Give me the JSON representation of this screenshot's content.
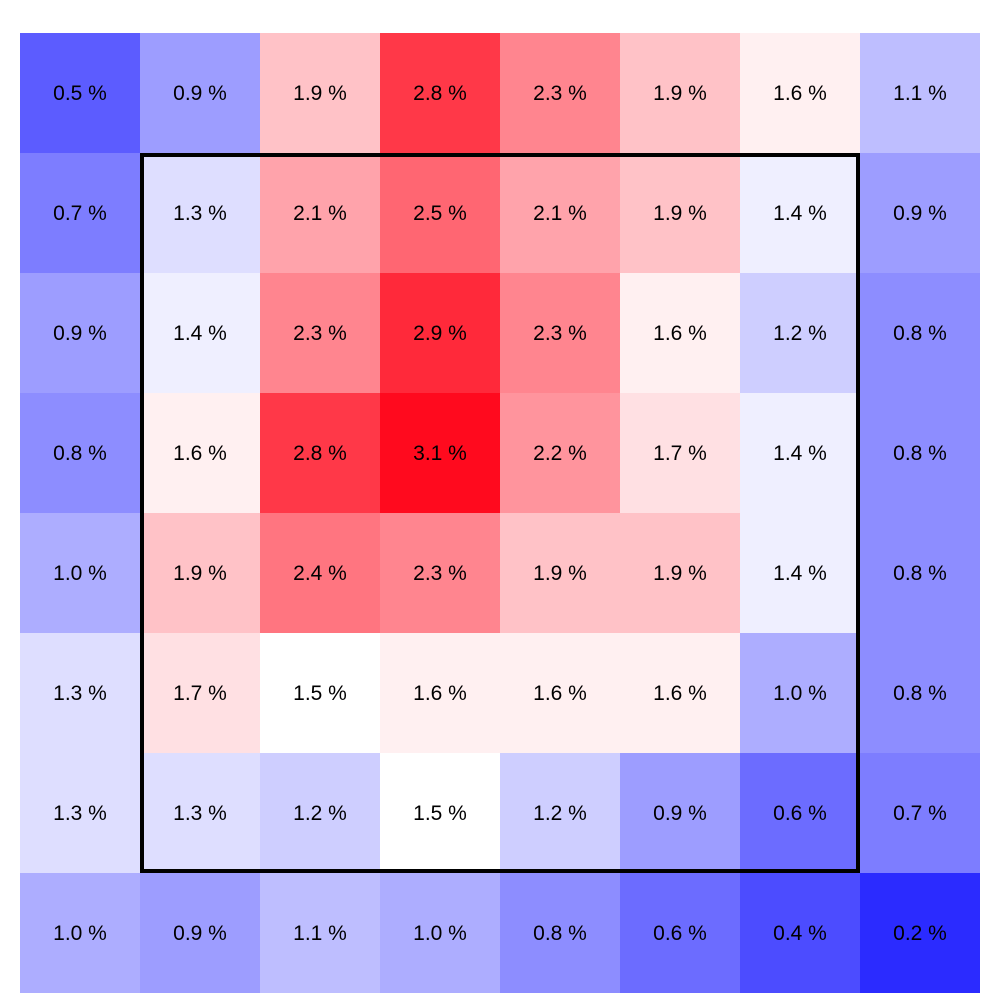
{
  "chart_data": {
    "type": "heatmap",
    "unit_suffix": " %",
    "rows": [
      [
        0.5,
        0.9,
        1.9,
        2.8,
        2.3,
        1.9,
        1.6,
        1.1
      ],
      [
        0.7,
        1.3,
        2.1,
        2.5,
        2.1,
        1.9,
        1.4,
        0.9
      ],
      [
        0.9,
        1.4,
        2.3,
        2.9,
        2.3,
        1.6,
        1.2,
        0.8
      ],
      [
        0.8,
        1.6,
        2.8,
        3.1,
        2.2,
        1.7,
        1.4,
        0.8
      ],
      [
        1.0,
        1.9,
        2.4,
        2.3,
        1.9,
        1.9,
        1.4,
        0.8
      ],
      [
        1.3,
        1.7,
        1.5,
        1.6,
        1.6,
        1.6,
        1.0,
        0.8
      ],
      [
        1.3,
        1.3,
        1.2,
        1.5,
        1.2,
        0.9,
        0.6,
        0.7
      ],
      [
        1.0,
        0.9,
        1.1,
        1.0,
        0.8,
        0.6,
        0.4,
        0.2
      ]
    ],
    "labels": [
      [
        "0.5 %",
        "0.9 %",
        "1.9 %",
        "2.8 %",
        "2.3 %",
        "1.9 %",
        "1.6 %",
        "1.1 %"
      ],
      [
        "0.7 %",
        "1.3 %",
        "2.1 %",
        "2.5 %",
        "2.1 %",
        "1.9 %",
        "1.4 %",
        "0.9 %"
      ],
      [
        "0.9 %",
        "1.4 %",
        "2.3 %",
        "2.9 %",
        "2.3 %",
        "1.6 %",
        "1.2 %",
        "0.8 %"
      ],
      [
        "0.8 %",
        "1.6 %",
        "2.8 %",
        "3.1 %",
        "2.2 %",
        "1.7 %",
        "1.4 %",
        "0.8 %"
      ],
      [
        "1.0 %",
        "1.9 %",
        "2.4 %",
        "2.3 %",
        "1.9 %",
        "1.9 %",
        "1.4 %",
        "0.8 %"
      ],
      [
        "1.3 %",
        "1.7 %",
        "1.5 %",
        "1.6 %",
        "1.6 %",
        "1.6 %",
        "1.0 %",
        "0.8 %"
      ],
      [
        "1.3 %",
        "1.3 %",
        "1.2 %",
        "1.5 %",
        "1.2 %",
        "0.9 %",
        "0.6 %",
        "0.7 %"
      ],
      [
        "1.0 %",
        "0.9 %",
        "1.1 %",
        "1.0 %",
        "0.8 %",
        "0.6 %",
        "0.4 %",
        "0.2 %"
      ]
    ],
    "color_scale": {
      "min": 0.2,
      "mid": 1.5,
      "max": 3.1,
      "low_color": "#2b2bff",
      "mid_color": "#ffffff",
      "high_color": "#ff0a1e"
    },
    "highlight_box": {
      "row_start": 1,
      "row_end": 6,
      "col_start": 1,
      "col_end": 6,
      "color": "#000000"
    },
    "grid": false,
    "legend": "none"
  }
}
